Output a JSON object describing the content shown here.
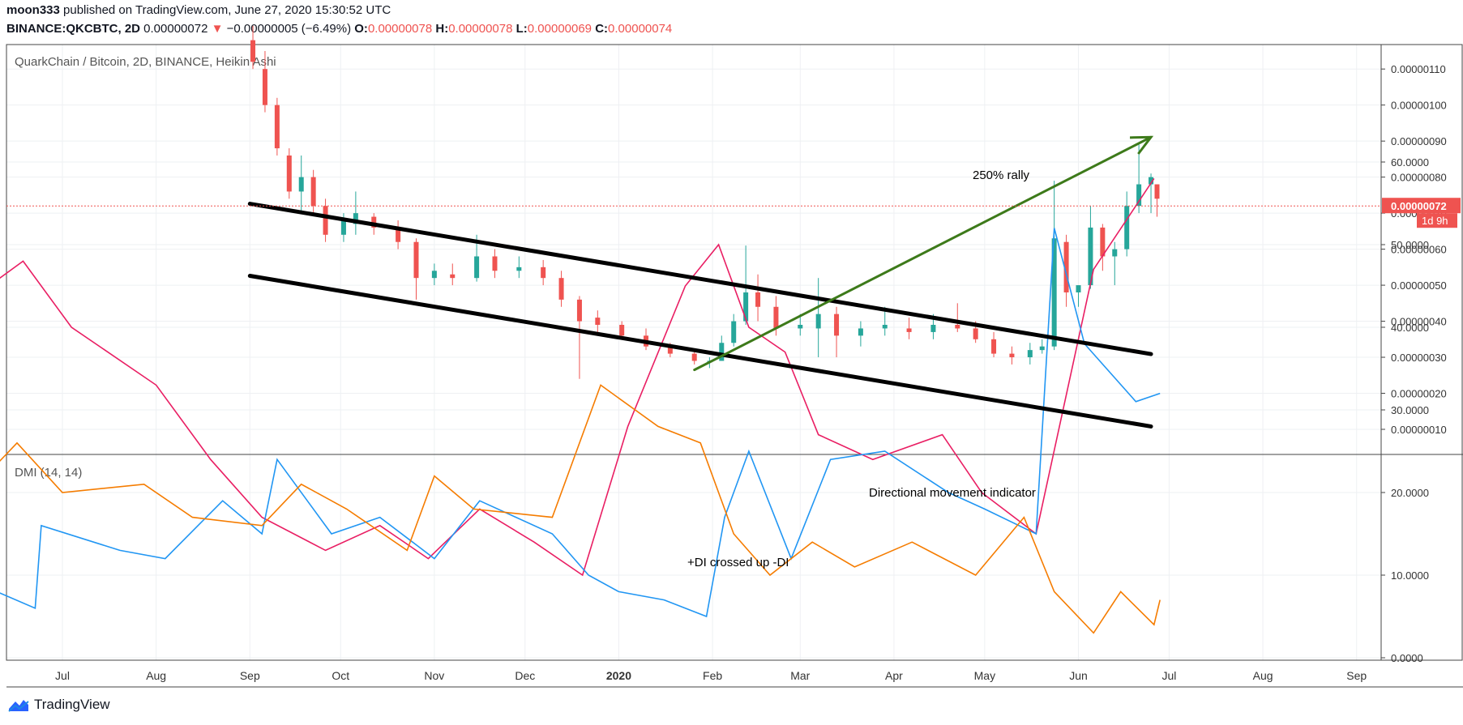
{
  "header": {
    "publisher": "moon333",
    "published_text": "published on TradingView.com, June 27, 2020 15:30:52 UTC",
    "symbol": "BINANCE:QKCBTC, 2D",
    "last": "0.00000072",
    "change": "−0.00000005 (−6.49%)",
    "o_label": "O:",
    "o_value": "0.00000078",
    "h_label": "H:",
    "h_value": "0.00000078",
    "l_label": "L:",
    "l_value": "0.00000069",
    "c_label": "C:",
    "c_value": "0.00000074"
  },
  "footer": {
    "brand": "TradingView"
  },
  "colors": {
    "up": "#26a69a",
    "down": "#ef5350",
    "plus_di": "#2196f3",
    "minus_di": "#f57c00",
    "adx": "#e91e63",
    "rally": "#3d7a1a",
    "channel": "#000000"
  },
  "chart_data": [
    {
      "type": "candlestick",
      "title": "QuarkChain / Bitcoin, 2D, BINANCE, Heikin Ashi",
      "y_ticks": [
        "0.00000010",
        "0.00000020",
        "0.00000030",
        "0.00000040",
        "0.00000050",
        "0.00000060",
        "0.00000070",
        "0.00000080",
        "0.00000090",
        "0.00000100",
        "0.00000110"
      ],
      "x_ticks": [
        "Jul",
        "Aug",
        "Sep",
        "Oct",
        "Nov",
        "Dec",
        "2020",
        "Feb",
        "Mar",
        "Apr",
        "May",
        "Jun",
        "Jul",
        "Aug",
        "Sep"
      ],
      "last_price_label": "0.00000072",
      "countdown_label": "1d 9h",
      "annotations": [
        "250% rally"
      ],
      "ohlc_approx": [
        {
          "date": "2019-09-02",
          "o": 1.18,
          "h": 1.22,
          "l": 1.1,
          "c": 1.12
        },
        {
          "date": "2019-09-06",
          "o": 1.1,
          "h": 1.15,
          "l": 0.98,
          "c": 1.0
        },
        {
          "date": "2019-09-10",
          "o": 1.0,
          "h": 1.02,
          "l": 0.86,
          "c": 0.88
        },
        {
          "date": "2019-09-14",
          "o": 0.86,
          "h": 0.88,
          "l": 0.74,
          "c": 0.76
        },
        {
          "date": "2019-09-18",
          "o": 0.76,
          "h": 0.86,
          "l": 0.7,
          "c": 0.8
        },
        {
          "date": "2019-09-22",
          "o": 0.8,
          "h": 0.82,
          "l": 0.7,
          "c": 0.72
        },
        {
          "date": "2019-09-26",
          "o": 0.72,
          "h": 0.74,
          "l": 0.62,
          "c": 0.64
        },
        {
          "date": "2019-10-02",
          "o": 0.64,
          "h": 0.7,
          "l": 0.62,
          "c": 0.68
        },
        {
          "date": "2019-10-06",
          "o": 0.67,
          "h": 0.76,
          "l": 0.64,
          "c": 0.7
        },
        {
          "date": "2019-10-12",
          "o": 0.69,
          "h": 0.7,
          "l": 0.64,
          "c": 0.66
        },
        {
          "date": "2019-10-20",
          "o": 0.66,
          "h": 0.68,
          "l": 0.6,
          "c": 0.62
        },
        {
          "date": "2019-10-26",
          "o": 0.62,
          "h": 0.63,
          "l": 0.46,
          "c": 0.52
        },
        {
          "date": "2019-11-01",
          "o": 0.52,
          "h": 0.56,
          "l": 0.5,
          "c": 0.54
        },
        {
          "date": "2019-11-07",
          "o": 0.53,
          "h": 0.56,
          "l": 0.5,
          "c": 0.52
        },
        {
          "date": "2019-11-15",
          "o": 0.52,
          "h": 0.64,
          "l": 0.51,
          "c": 0.58
        },
        {
          "date": "2019-11-21",
          "o": 0.58,
          "h": 0.6,
          "l": 0.52,
          "c": 0.54
        },
        {
          "date": "2019-11-29",
          "o": 0.54,
          "h": 0.58,
          "l": 0.52,
          "c": 0.55
        },
        {
          "date": "2019-12-07",
          "o": 0.55,
          "h": 0.57,
          "l": 0.5,
          "c": 0.52
        },
        {
          "date": "2019-12-13",
          "o": 0.52,
          "h": 0.54,
          "l": 0.44,
          "c": 0.46
        },
        {
          "date": "2019-12-19",
          "o": 0.46,
          "h": 0.47,
          "l": 0.24,
          "c": 0.4
        },
        {
          "date": "2019-12-25",
          "o": 0.41,
          "h": 0.43,
          "l": 0.37,
          "c": 0.39
        },
        {
          "date": "2020-01-02",
          "o": 0.39,
          "h": 0.4,
          "l": 0.35,
          "c": 0.36
        },
        {
          "date": "2020-01-10",
          "o": 0.36,
          "h": 0.38,
          "l": 0.32,
          "c": 0.33
        },
        {
          "date": "2020-01-18",
          "o": 0.33,
          "h": 0.34,
          "l": 0.3,
          "c": 0.31
        },
        {
          "date": "2020-01-26",
          "o": 0.31,
          "h": 0.32,
          "l": 0.28,
          "c": 0.29
        },
        {
          "date": "2020-01-31",
          "o": 0.29,
          "h": 0.3,
          "l": 0.27,
          "c": 0.29
        },
        {
          "date": "2020-02-04",
          "o": 0.29,
          "h": 0.36,
          "l": 0.29,
          "c": 0.34
        },
        {
          "date": "2020-02-08",
          "o": 0.34,
          "h": 0.42,
          "l": 0.33,
          "c": 0.4
        },
        {
          "date": "2020-02-12",
          "o": 0.4,
          "h": 0.61,
          "l": 0.39,
          "c": 0.48
        },
        {
          "date": "2020-02-16",
          "o": 0.48,
          "h": 0.53,
          "l": 0.4,
          "c": 0.44
        },
        {
          "date": "2020-02-22",
          "o": 0.44,
          "h": 0.47,
          "l": 0.36,
          "c": 0.38
        },
        {
          "date": "2020-03-01",
          "o": 0.38,
          "h": 0.42,
          "l": 0.36,
          "c": 0.39
        },
        {
          "date": "2020-03-07",
          "o": 0.38,
          "h": 0.52,
          "l": 0.3,
          "c": 0.42
        },
        {
          "date": "2020-03-13",
          "o": 0.42,
          "h": 0.44,
          "l": 0.3,
          "c": 0.36
        },
        {
          "date": "2020-03-21",
          "o": 0.36,
          "h": 0.4,
          "l": 0.33,
          "c": 0.38
        },
        {
          "date": "2020-03-29",
          "o": 0.38,
          "h": 0.44,
          "l": 0.36,
          "c": 0.39
        },
        {
          "date": "2020-04-06",
          "o": 0.38,
          "h": 0.41,
          "l": 0.35,
          "c": 0.37
        },
        {
          "date": "2020-04-14",
          "o": 0.37,
          "h": 0.42,
          "l": 0.35,
          "c": 0.39
        },
        {
          "date": "2020-04-22",
          "o": 0.39,
          "h": 0.45,
          "l": 0.37,
          "c": 0.38
        },
        {
          "date": "2020-04-28",
          "o": 0.38,
          "h": 0.4,
          "l": 0.34,
          "c": 0.35
        },
        {
          "date": "2020-05-04",
          "o": 0.35,
          "h": 0.37,
          "l": 0.3,
          "c": 0.31
        },
        {
          "date": "2020-05-10",
          "o": 0.31,
          "h": 0.33,
          "l": 0.28,
          "c": 0.3
        },
        {
          "date": "2020-05-16",
          "o": 0.3,
          "h": 0.34,
          "l": 0.28,
          "c": 0.32
        },
        {
          "date": "2020-05-20",
          "o": 0.32,
          "h": 0.35,
          "l": 0.31,
          "c": 0.33
        },
        {
          "date": "2020-05-24",
          "o": 0.33,
          "h": 0.79,
          "l": 0.32,
          "c": 0.63
        },
        {
          "date": "2020-05-28",
          "o": 0.62,
          "h": 0.64,
          "l": 0.44,
          "c": 0.48
        },
        {
          "date": "2020-06-01",
          "o": 0.48,
          "h": 0.5,
          "l": 0.44,
          "c": 0.5
        },
        {
          "date": "2020-06-05",
          "o": 0.5,
          "h": 0.72,
          "l": 0.49,
          "c": 0.66
        },
        {
          "date": "2020-06-09",
          "o": 0.66,
          "h": 0.67,
          "l": 0.54,
          "c": 0.58
        },
        {
          "date": "2020-06-13",
          "o": 0.58,
          "h": 0.62,
          "l": 0.5,
          "c": 0.6
        },
        {
          "date": "2020-06-17",
          "o": 0.6,
          "h": 0.76,
          "l": 0.58,
          "c": 0.72
        },
        {
          "date": "2020-06-21",
          "o": 0.72,
          "h": 0.89,
          "l": 0.7,
          "c": 0.78
        },
        {
          "date": "2020-06-25",
          "o": 0.78,
          "h": 0.81,
          "l": 0.7,
          "c": 0.8
        },
        {
          "date": "2020-06-27",
          "o": 0.78,
          "h": 0.78,
          "l": 0.69,
          "c": 0.74
        }
      ],
      "trendlines": [
        {
          "name": "channel upper",
          "from": {
            "date": "2019-09-01",
            "price": 0.726
          },
          "to": {
            "date": "2020-06-25",
            "price": 0.309
          }
        },
        {
          "name": "channel lower",
          "from": {
            "date": "2019-09-01",
            "price": 0.526
          },
          "to": {
            "date": "2020-06-25",
            "price": 0.108
          }
        },
        {
          "name": "rally arrow",
          "from": {
            "date": "2020-01-26",
            "price": 0.265
          },
          "to": {
            "date": "2020-06-25",
            "price": 0.911
          }
        }
      ]
    },
    {
      "type": "line",
      "title": "DMI (14, 14)",
      "y_ticks": [
        "0.0000",
        "10.0000",
        "20.0000",
        "30.0000",
        "40.0000",
        "50.0000",
        "60.0000"
      ],
      "annotations": [
        "Directional movement indicator",
        "+DI crossed up -DI"
      ],
      "series": [
        {
          "key": "adx",
          "points": [
            [
              "2019-06-03",
              44
            ],
            [
              "2019-06-18",
              48
            ],
            [
              "2019-07-04",
              40
            ],
            [
              "2019-08-01",
              33
            ],
            [
              "2019-08-19",
              24
            ],
            [
              "2019-09-05",
              17
            ],
            [
              "2019-09-26",
              13
            ],
            [
              "2019-10-14",
              16
            ],
            [
              "2019-10-30",
              12
            ],
            [
              "2019-11-16",
              18
            ],
            [
              "2019-12-04",
              14
            ],
            [
              "2019-12-20",
              10
            ],
            [
              "2020-01-04",
              28
            ],
            [
              "2020-01-23",
              45
            ],
            [
              "2020-02-03",
              50
            ],
            [
              "2020-02-13",
              40
            ],
            [
              "2020-02-25",
              37
            ],
            [
              "2020-03-07",
              27
            ],
            [
              "2020-03-25",
              24
            ],
            [
              "2020-04-17",
              27
            ],
            [
              "2020-04-30",
              20
            ],
            [
              "2020-05-18",
              15
            ],
            [
              "2020-06-06",
              47
            ],
            [
              "2020-06-26",
              58
            ]
          ]
        },
        {
          "key": "plus_di",
          "points": [
            [
              "2019-06-03",
              9
            ],
            [
              "2019-06-22",
              6
            ],
            [
              "2019-06-24",
              16
            ],
            [
              "2019-07-20",
              13
            ],
            [
              "2019-08-04",
              12
            ],
            [
              "2019-08-23",
              19
            ],
            [
              "2019-09-05",
              15
            ],
            [
              "2019-09-10",
              24
            ],
            [
              "2019-09-28",
              15
            ],
            [
              "2019-10-14",
              17
            ],
            [
              "2019-11-01",
              12
            ],
            [
              "2019-11-16",
              19
            ],
            [
              "2019-12-10",
              15
            ],
            [
              "2019-12-22",
              10
            ],
            [
              "2020-01-01",
              8
            ],
            [
              "2020-01-16",
              7
            ],
            [
              "2020-01-30",
              5
            ],
            [
              "2020-02-05",
              17
            ],
            [
              "2020-02-13",
              25
            ],
            [
              "2020-02-27",
              12
            ],
            [
              "2020-03-11",
              24
            ],
            [
              "2020-03-29",
              25
            ],
            [
              "2020-04-19",
              20
            ],
            [
              "2020-05-01",
              18
            ],
            [
              "2020-05-18",
              15
            ],
            [
              "2020-05-24",
              52
            ],
            [
              "2020-06-03",
              38
            ],
            [
              "2020-06-20",
              31
            ],
            [
              "2020-06-28",
              32
            ]
          ]
        },
        {
          "key": "minus_di",
          "points": [
            [
              "2019-06-03",
              21
            ],
            [
              "2019-06-16",
              26
            ],
            [
              "2019-07-01",
              20
            ],
            [
              "2019-07-28",
              21
            ],
            [
              "2019-08-13",
              17
            ],
            [
              "2019-09-05",
              16
            ],
            [
              "2019-09-18",
              21
            ],
            [
              "2019-10-03",
              18
            ],
            [
              "2019-10-23",
              13
            ],
            [
              "2019-11-01",
              22
            ],
            [
              "2019-11-14",
              18
            ],
            [
              "2019-12-10",
              17
            ],
            [
              "2019-12-26",
              33
            ],
            [
              "2020-01-14",
              28
            ],
            [
              "2020-01-28",
              26
            ],
            [
              "2020-02-08",
              15
            ],
            [
              "2020-02-20",
              10
            ],
            [
              "2020-03-05",
              14
            ],
            [
              "2020-03-19",
              11
            ],
            [
              "2020-04-07",
              14
            ],
            [
              "2020-04-28",
              10
            ],
            [
              "2020-05-14",
              17
            ],
            [
              "2020-05-24",
              8
            ],
            [
              "2020-06-06",
              3
            ],
            [
              "2020-06-15",
              8
            ],
            [
              "2020-06-26",
              4
            ],
            [
              "2020-06-28",
              7
            ]
          ]
        }
      ]
    }
  ]
}
